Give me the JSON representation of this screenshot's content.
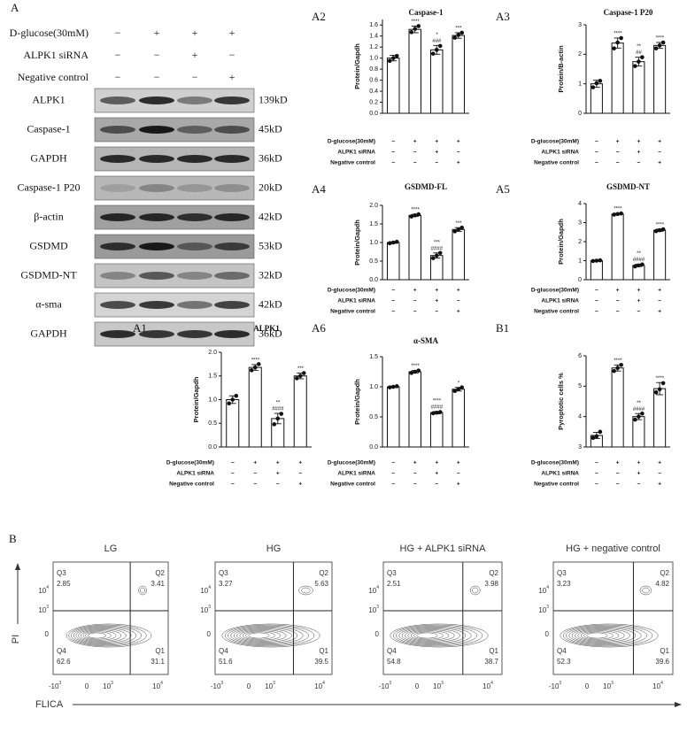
{
  "conditions": {
    "rows": [
      {
        "label": "D-glucose(30mM)",
        "signs": [
          "−",
          "+",
          "+",
          "+"
        ]
      },
      {
        "label": "ALPK1 siRNA",
        "signs": [
          "−",
          "−",
          "+",
          "−"
        ]
      },
      {
        "label": "Negative control",
        "signs": [
          "−",
          "−",
          "−",
          "+"
        ]
      }
    ]
  },
  "western_blot": {
    "panel": "A",
    "rows": [
      {
        "label": "ALPK1",
        "size": "139kD"
      },
      {
        "label": "Caspase-1",
        "size": "45kD"
      },
      {
        "label": "GAPDH",
        "size": "36kD"
      },
      {
        "label": "Caspase-1 P20",
        "size": "20kD"
      },
      {
        "label": "β-actin",
        "size": "42kD"
      },
      {
        "label": "GSDMD",
        "size": "53kD"
      },
      {
        "label": "GSDMD-NT",
        "size": "32kD"
      },
      {
        "label": "α-sma",
        "size": "42kD"
      },
      {
        "label": "GAPDH",
        "size": "36kD"
      }
    ]
  },
  "chart_data": [
    {
      "type": "bar",
      "panel": "A2",
      "title": "Caspase-1",
      "ylabel": "Protein/Gapdh",
      "ylim": [
        0,
        1.7
      ],
      "yticks": [
        {
          "value": 0,
          "label": "0.0"
        },
        0.2,
        0.4,
        0.6,
        0.8,
        {
          "value": 1,
          "label": "1.0"
        },
        1.2,
        1.4,
        1.6
      ],
      "values": [
        1.0,
        1.52,
        1.15,
        1.41
      ],
      "errors": [
        0.05,
        0.06,
        0.08,
        0.05
      ],
      "points": [
        [
          0.95,
          1.0,
          1.04
        ],
        [
          1.47,
          1.53,
          1.58
        ],
        [
          1.08,
          1.15,
          1.22
        ],
        [
          1.37,
          1.42,
          1.46
        ]
      ],
      "annotations": [
        [],
        [
          "****"
        ],
        [
          "*",
          "###"
        ],
        [
          "***"
        ]
      ]
    },
    {
      "type": "bar",
      "panel": "A3",
      "title": "Caspase-1 P20",
      "ylabel": "Protein/B-actin",
      "ylim": [
        0,
        3
      ],
      "yticks": [
        0,
        1,
        2,
        3
      ],
      "values": [
        1.0,
        2.38,
        1.75,
        2.3
      ],
      "errors": [
        0.12,
        0.17,
        0.15,
        0.1
      ],
      "points": [
        [
          0.88,
          1.02,
          1.1
        ],
        [
          2.2,
          2.4,
          2.55
        ],
        [
          1.6,
          1.75,
          1.9
        ],
        [
          2.2,
          2.3,
          2.4
        ]
      ],
      "annotations": [
        [],
        [
          "****"
        ],
        [
          "**",
          "##"
        ],
        [
          "****"
        ]
      ]
    },
    {
      "type": "bar",
      "panel": "A4",
      "title": "GSDMD-FL",
      "ylabel": "Protein/Gapdh",
      "ylim": [
        0,
        2
      ],
      "yticks": [
        {
          "value": 0,
          "label": "0.0"
        },
        0.5,
        {
          "value": 1,
          "label": "1.0"
        },
        1.5,
        {
          "value": 2,
          "label": "2.0"
        }
      ],
      "values": [
        1.0,
        1.73,
        0.65,
        1.35
      ],
      "errors": [
        0.02,
        0.03,
        0.07,
        0.05
      ],
      "points": [
        [
          0.98,
          1.0,
          1.02
        ],
        [
          1.7,
          1.73,
          1.76
        ],
        [
          0.58,
          0.65,
          0.72
        ],
        [
          1.3,
          1.35,
          1.4
        ]
      ],
      "annotations": [
        [],
        [
          "****"
        ],
        [
          "***",
          "####"
        ],
        [
          "***"
        ]
      ]
    },
    {
      "type": "bar",
      "panel": "A5",
      "title": "GSDMD-NT",
      "ylabel": "Protein/Gapdh",
      "ylim": [
        0,
        4
      ],
      "yticks": [
        0,
        1,
        2,
        3,
        4
      ],
      "values": [
        1.0,
        3.45,
        0.75,
        2.6
      ],
      "errors": [
        0.03,
        0.04,
        0.06,
        0.06
      ],
      "points": [
        [
          0.98,
          1.0,
          1.02
        ],
        [
          3.42,
          3.45,
          3.48
        ],
        [
          0.7,
          0.75,
          0.8
        ],
        [
          2.55,
          2.6,
          2.65
        ]
      ],
      "annotations": [
        [],
        [
          "****"
        ],
        [
          "**",
          "####"
        ],
        [
          "****"
        ]
      ]
    },
    {
      "type": "bar",
      "panel": "A1",
      "title": "ALPK1",
      "ylabel": "Protein/Gapdh",
      "ylim": [
        0,
        2
      ],
      "yticks": [
        {
          "value": 0,
          "label": "0.0"
        },
        0.5,
        {
          "value": 1,
          "label": "1.0"
        },
        1.5,
        {
          "value": 2,
          "label": "2.0"
        }
      ],
      "values": [
        1.0,
        1.68,
        0.6,
        1.5
      ],
      "errors": [
        0.08,
        0.06,
        0.11,
        0.06
      ],
      "points": [
        [
          0.92,
          1.0,
          1.08
        ],
        [
          1.62,
          1.68,
          1.75
        ],
        [
          0.48,
          0.6,
          0.7
        ],
        [
          1.45,
          1.5,
          1.56
        ]
      ],
      "annotations": [
        [],
        [
          "****"
        ],
        [
          "**",
          "####"
        ],
        [
          "***"
        ]
      ]
    },
    {
      "type": "bar",
      "panel": "A6",
      "title": "α-SMA",
      "ylabel": "Protein/Gapdh",
      "ylim": [
        0,
        1.5
      ],
      "yticks": [
        {
          "value": 0,
          "label": "0.0"
        },
        0.5,
        {
          "value": 1,
          "label": "1.0"
        },
        1.5
      ],
      "values": [
        1.0,
        1.25,
        0.57,
        0.96
      ],
      "errors": [
        0.01,
        0.02,
        0.02,
        0.03
      ],
      "points": [
        [
          0.99,
          1.0,
          1.01
        ],
        [
          1.23,
          1.25,
          1.27
        ],
        [
          0.56,
          0.57,
          0.58
        ],
        [
          0.93,
          0.96,
          0.99
        ]
      ],
      "annotations": [
        [],
        [
          "****"
        ],
        [
          "****",
          "####"
        ],
        [
          "*"
        ]
      ]
    },
    {
      "type": "bar",
      "panel": "B1",
      "ylabel": "Pyroptotic cells %",
      "ylim": [
        3,
        6
      ],
      "yticks": [
        3,
        4,
        5,
        6
      ],
      "values": [
        3.38,
        5.6,
        4.0,
        4.92
      ],
      "errors": [
        0.1,
        0.1,
        0.1,
        0.2
      ],
      "points": [
        [
          3.3,
          3.35,
          3.5
        ],
        [
          5.5,
          5.6,
          5.7
        ],
        [
          3.9,
          4.0,
          4.1
        ],
        [
          4.8,
          4.9,
          5.1
        ]
      ],
      "annotations": [
        [],
        [
          "****"
        ],
        [
          "**",
          "####"
        ],
        [
          "****"
        ]
      ]
    }
  ],
  "flow": {
    "panel": "B",
    "ylabel": "PI",
    "xlabel": "FLICA",
    "yticks": [
      {
        "base": "10",
        "exp": "4"
      },
      {
        "base": "10",
        "exp": "3"
      },
      {
        "base": "0"
      }
    ],
    "xticks": [
      {
        "base": "-10",
        "exp": "3"
      },
      {
        "base": "0"
      },
      {
        "base": "10",
        "exp": "3"
      },
      {
        "base": "10",
        "exp": "4"
      }
    ],
    "quadrant_names": [
      "Q3",
      "Q2",
      "Q4",
      "Q1"
    ],
    "plots": [
      {
        "title": "LG",
        "quadrants": [
          2.85,
          3.41,
          62.6,
          31.1
        ]
      },
      {
        "title": "HG",
        "quadrants": [
          3.27,
          5.63,
          51.6,
          39.5
        ]
      },
      {
        "title": "HG + ALPK1 siRNA",
        "quadrants": [
          2.51,
          3.98,
          54.8,
          38.7
        ]
      },
      {
        "title": "HG + negative control",
        "quadrants": [
          3.23,
          4.82,
          52.3,
          39.6
        ]
      }
    ]
  }
}
